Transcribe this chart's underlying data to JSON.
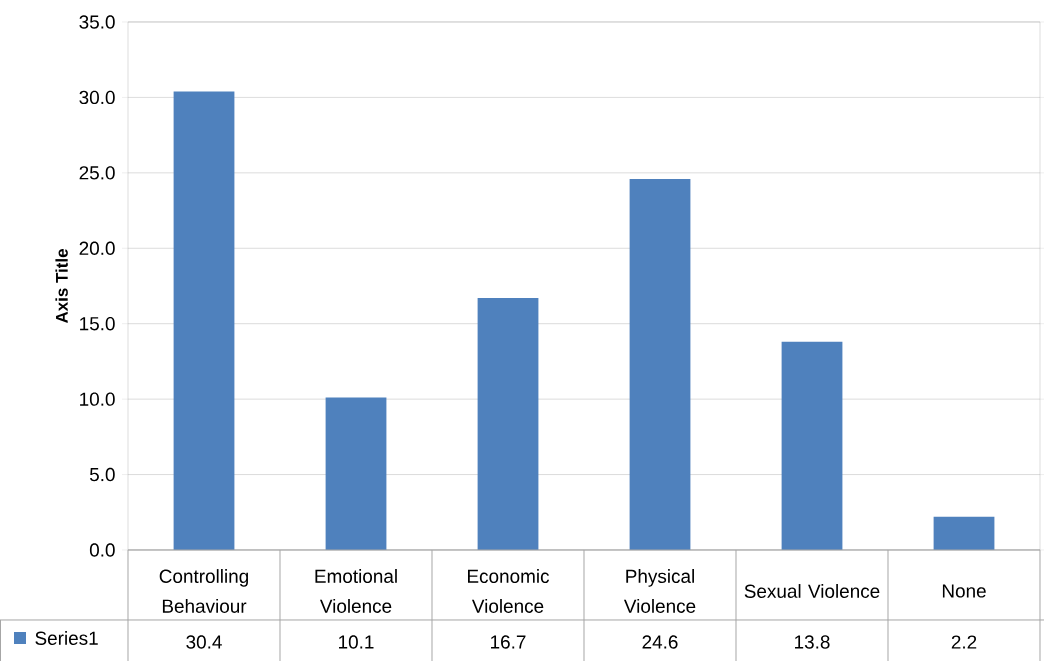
{
  "chart_data": {
    "type": "bar",
    "ylabel": "Axis Title",
    "categories": [
      "Controlling Behaviour",
      "Emotional Violence",
      "Economic Violence",
      "Physical Violence",
      "Sexual Violence",
      "None"
    ],
    "series": [
      {
        "name": "Series1",
        "color": "#4f81bd",
        "values": [
          30.4,
          10.1,
          16.7,
          24.6,
          13.8,
          2.2
        ]
      }
    ],
    "ylim": [
      0,
      35
    ],
    "yticks": [
      {
        "value": 0,
        "label": "0.0"
      },
      {
        "value": 5,
        "label": "5.0"
      },
      {
        "value": 10,
        "label": "10.0"
      },
      {
        "value": 15,
        "label": "15.0"
      },
      {
        "value": 20,
        "label": "20.0"
      },
      {
        "value": 25,
        "label": "25.0"
      },
      {
        "value": 30,
        "label": "30.0"
      },
      {
        "value": 35,
        "label": "35.0"
      }
    ],
    "grid": "y",
    "data_labels": true
  }
}
